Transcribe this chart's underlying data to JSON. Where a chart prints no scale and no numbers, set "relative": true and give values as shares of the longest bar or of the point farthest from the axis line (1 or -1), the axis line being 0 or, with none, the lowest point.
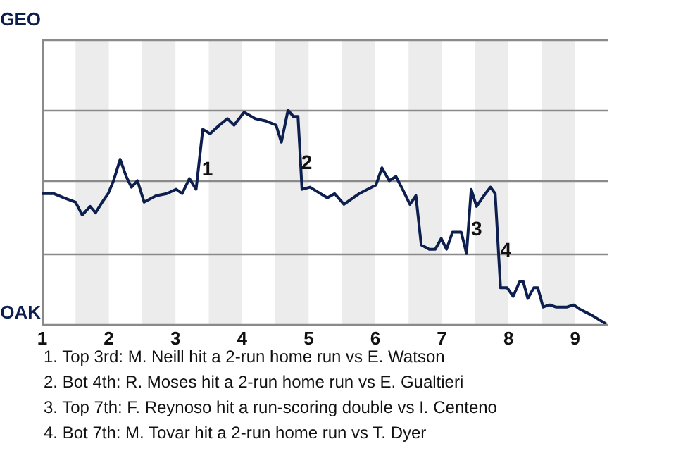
{
  "chart_data": {
    "type": "line",
    "marker": "none",
    "line_style": "solid",
    "legend": false,
    "relative": true,
    "xlim": [
      1,
      9.5
    ],
    "xticks": [
      1,
      2,
      3,
      4,
      5,
      6,
      7,
      8,
      9
    ],
    "ref_lines": [
      {
        "axis": "y",
        "value": 1.33,
        "color": "#8a8a8a"
      },
      {
        "axis": "y",
        "value": 1,
        "color": "#8a8a8a"
      },
      {
        "axis": "y",
        "value": 0.67,
        "color": "#8a8a8a"
      },
      {
        "axis": "y",
        "value": 0.33,
        "color": "#8a8a8a"
      }
    ],
    "bands": [
      {
        "axis": "x",
        "from": 1.5,
        "to": 2,
        "color": "#ececec"
      },
      {
        "axis": "x",
        "from": 2.5,
        "to": 3,
        "color": "#ececec"
      },
      {
        "axis": "x",
        "from": 3.5,
        "to": 4,
        "color": "#ececec"
      },
      {
        "axis": "x",
        "from": 4.5,
        "to": 5,
        "color": "#ececec"
      },
      {
        "axis": "x",
        "from": 5.5,
        "to": 6,
        "color": "#ececec"
      },
      {
        "axis": "x",
        "from": 6.5,
        "to": 7,
        "color": "#ececec"
      },
      {
        "axis": "x",
        "from": 7.5,
        "to": 8,
        "color": "#ececec"
      },
      {
        "axis": "x",
        "from": 8.5,
        "to": 9,
        "color": "#ececec"
      }
    ],
    "series": [
      {
        "color": "#0d1f4f",
        "x": [
          1,
          1.17,
          1.33,
          1.5,
          1.6,
          1.72,
          1.8,
          1.9,
          1.99,
          2.07,
          2.17,
          2.26,
          2.34,
          2.43,
          2.53,
          2.71,
          2.87,
          3.01,
          3.1,
          3.21,
          3.31,
          3.41,
          3.52,
          3.66,
          3.78,
          3.88,
          4.03,
          4.2,
          4.35,
          4.51,
          4.59,
          4.69,
          4.77,
          4.84,
          4.9,
          5.02,
          5.28,
          5.39,
          5.53,
          5.76,
          6.01,
          6.1,
          6.21,
          6.31,
          6.41,
          6.52,
          6.61,
          6.69,
          6.81,
          6.9,
          6.99,
          7.07,
          7.16,
          7.29,
          7.37,
          7.44,
          7.52,
          7.63,
          7.73,
          7.8,
          7.88,
          7.98,
          8.07,
          8.17,
          8.22,
          8.29,
          8.38,
          8.44,
          8.52,
          8.62,
          8.71,
          8.88,
          8.98,
          9.07,
          9.26,
          9.47
        ],
        "values": [
          0.61,
          0.61,
          0.59,
          0.57,
          0.51,
          0.55,
          0.52,
          0.57,
          0.61,
          0.67,
          0.77,
          0.69,
          0.64,
          0.67,
          0.57,
          0.6,
          0.61,
          0.63,
          0.61,
          0.68,
          0.63,
          0.91,
          0.89,
          0.93,
          0.96,
          0.93,
          0.99,
          0.96,
          0.95,
          0.93,
          0.85,
          1,
          0.97,
          0.97,
          0.63,
          0.64,
          0.59,
          0.61,
          0.56,
          0.61,
          0.65,
          0.73,
          0.67,
          0.69,
          0.63,
          0.56,
          0.6,
          0.37,
          0.35,
          0.35,
          0.4,
          0.35,
          0.43,
          0.43,
          0.33,
          0.63,
          0.55,
          0.6,
          0.64,
          0.61,
          0.17,
          0.17,
          0.13,
          0.2,
          0.2,
          0.12,
          0.17,
          0.17,
          0.08,
          0.09,
          0.08,
          0.08,
          0.09,
          0.07,
          0.04,
          0
        ]
      }
    ],
    "annotations": [
      "GEO",
      "OAK",
      {
        "text": "1",
        "x": 3.48,
        "y": 0.72
      },
      {
        "text": "2",
        "x": 4.97,
        "y": 0.75
      },
      {
        "text": "3",
        "x": 7.52,
        "y": 0.44
      },
      {
        "text": "4",
        "x": 7.96,
        "y": 0.34
      },
      "1. Top 3rd: M. Neill hit a 2-run home run vs E. Watson",
      "2. Bot 4th: R. Moses hit a 2-run home run vs E. Gualtieri",
      "3. Top 7th: F. Reynoso hit a run-scoring double vs I. Centeno",
      "4. Bot 7th: M. Tovar hit a 2-run home run vs T. Dyer"
    ]
  }
}
